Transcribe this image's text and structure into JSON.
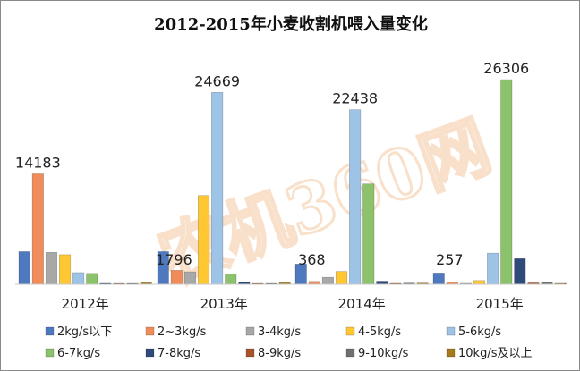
{
  "watermark": "农机360网",
  "chart_data": {
    "type": "bar",
    "title": "2012-2015年小麦收割机喂入量变化",
    "categories": [
      "2012年",
      "2013年",
      "2014年",
      "2015年"
    ],
    "ylim": [
      0,
      26306
    ],
    "grid": false,
    "legend_position": "bottom",
    "series": [
      {
        "name": "2kg/s以下",
        "color": "#4f79bf",
        "values": [
          4200,
          4200,
          2600,
          1450
        ]
      },
      {
        "name": "2~3kg/s",
        "color": "#f08c5a",
        "values": [
          14183,
          1796,
          368,
          257
        ]
      },
      {
        "name": "3-4kg/s",
        "color": "#a8a8a8",
        "values": [
          4100,
          1600,
          900,
          120
        ]
      },
      {
        "name": "4-5kg/s",
        "color": "#ffc832",
        "values": [
          3800,
          11400,
          1650,
          480
        ]
      },
      {
        "name": "5-6kg/s",
        "color": "#9dc3e6",
        "values": [
          1500,
          24669,
          22438,
          4000
        ]
      },
      {
        "name": "6-7kg/s",
        "color": "#8cc26b",
        "values": [
          1400,
          1300,
          12900,
          26306
        ]
      },
      {
        "name": "7-8kg/s",
        "color": "#2f4b7c",
        "values": [
          120,
          250,
          400,
          3300
        ]
      },
      {
        "name": "8-9kg/s",
        "color": "#a8532b",
        "values": [
          50,
          80,
          120,
          180
        ]
      },
      {
        "name": "9-10kg/s",
        "color": "#6f6f6f",
        "values": [
          60,
          90,
          150,
          300
        ]
      },
      {
        "name": "10kg/s及以上",
        "color": "#a57c1b",
        "values": [
          200,
          200,
          150,
          120
        ]
      }
    ],
    "data_labels": [
      {
        "series": 1,
        "category": 0,
        "text": "14183"
      },
      {
        "series": 4,
        "category": 1,
        "text": "24669"
      },
      {
        "series": 1,
        "category": 1,
        "text": "1796"
      },
      {
        "series": 4,
        "category": 2,
        "text": "22438"
      },
      {
        "series": 1,
        "category": 2,
        "text": "368"
      },
      {
        "series": 5,
        "category": 3,
        "text": "26306"
      },
      {
        "series": 1,
        "category": 3,
        "text": "257"
      }
    ]
  }
}
